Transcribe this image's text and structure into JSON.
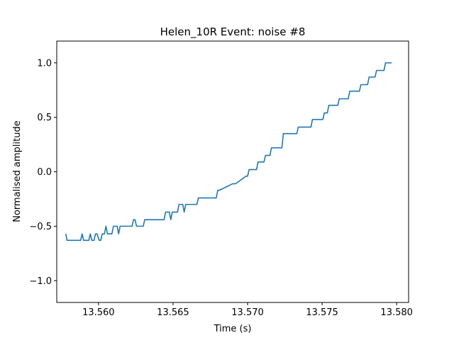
{
  "chart_data": {
    "type": "line",
    "title": "Helen_10R Event: noise #8",
    "xlabel": "Time (s)",
    "ylabel": "Normalised amplitude",
    "xlim": [
      13.5572,
      13.5808
    ],
    "ylim": [
      -1.2,
      1.2
    ],
    "x_ticks": [
      13.56,
      13.565,
      13.57,
      13.575,
      13.58
    ],
    "x_tick_labels": [
      "13.560",
      "13.565",
      "13.570",
      "13.575",
      "13.580"
    ],
    "y_ticks": [
      -1.0,
      -0.5,
      0.0,
      0.5,
      1.0
    ],
    "y_tick_labels": [
      "−1.0",
      "−0.5",
      "0.0",
      "0.5",
      "1.0"
    ],
    "grid": false,
    "legend": "none",
    "series": [
      {
        "color": "#1f77b4",
        "x": [
          13.55781,
          13.55789,
          13.5588,
          13.5589,
          13.559,
          13.55935,
          13.55945,
          13.55955,
          13.5597,
          13.5598,
          13.5599,
          13.56005,
          13.56015,
          13.56025,
          13.5604,
          13.5605,
          13.5606,
          13.5609,
          13.561,
          13.5611,
          13.56125,
          13.56135,
          13.56145,
          13.56165,
          13.56175,
          13.56185,
          13.56195,
          13.56225,
          13.56235,
          13.56245,
          13.56255,
          13.563,
          13.5631,
          13.5632,
          13.56325,
          13.56335,
          13.56345,
          13.5644,
          13.5645,
          13.5646,
          13.56475,
          13.56485,
          13.56495,
          13.5653,
          13.5654,
          13.5655,
          13.56565,
          13.56575,
          13.56585,
          13.5666,
          13.5667,
          13.5668,
          13.5679,
          13.568,
          13.5681,
          13.569,
          13.5691,
          13.5692,
          13.5699,
          13.57,
          13.5701,
          13.5706,
          13.5707,
          13.5708,
          13.5711,
          13.5712,
          13.5713,
          13.5715,
          13.5716,
          13.5717,
          13.5723,
          13.5724,
          13.5725,
          13.5733,
          13.5734,
          13.5735,
          13.57425,
          13.57435,
          13.57445,
          13.57505,
          13.57515,
          13.57525,
          13.57535,
          13.57545,
          13.57555,
          13.57605,
          13.57615,
          13.57625,
          13.57675,
          13.57685,
          13.57695,
          13.5775,
          13.5776,
          13.5777,
          13.57805,
          13.57815,
          13.57825,
          13.57855,
          13.57865,
          13.57875,
          13.57915,
          13.57925,
          13.57935,
          13.57966
        ],
        "y": [
          -0.57,
          -0.63,
          -0.63,
          -0.57,
          -0.63,
          -0.63,
          -0.57,
          -0.63,
          -0.63,
          -0.57,
          -0.57,
          -0.63,
          -0.63,
          -0.57,
          -0.57,
          -0.5,
          -0.57,
          -0.57,
          -0.5,
          -0.5,
          -0.5,
          -0.57,
          -0.5,
          -0.5,
          -0.5,
          -0.5,
          -0.5,
          -0.5,
          -0.44,
          -0.44,
          -0.5,
          -0.5,
          -0.44,
          -0.44,
          -0.44,
          -0.44,
          -0.44,
          -0.44,
          -0.37,
          -0.37,
          -0.37,
          -0.44,
          -0.37,
          -0.37,
          -0.3,
          -0.3,
          -0.3,
          -0.37,
          -0.3,
          -0.3,
          -0.24,
          -0.24,
          -0.24,
          -0.17,
          -0.17,
          -0.11,
          -0.11,
          -0.11,
          -0.04,
          -0.04,
          0.02,
          0.02,
          0.09,
          0.09,
          0.09,
          0.15,
          0.15,
          0.15,
          0.22,
          0.22,
          0.22,
          0.35,
          0.35,
          0.35,
          0.41,
          0.41,
          0.41,
          0.48,
          0.48,
          0.48,
          0.54,
          0.54,
          0.54,
          0.61,
          0.61,
          0.61,
          0.67,
          0.67,
          0.67,
          0.74,
          0.74,
          0.74,
          0.8,
          0.8,
          0.8,
          0.87,
          0.87,
          0.87,
          0.93,
          0.93,
          0.93,
          1.0,
          1.0,
          1.0
        ]
      }
    ]
  }
}
